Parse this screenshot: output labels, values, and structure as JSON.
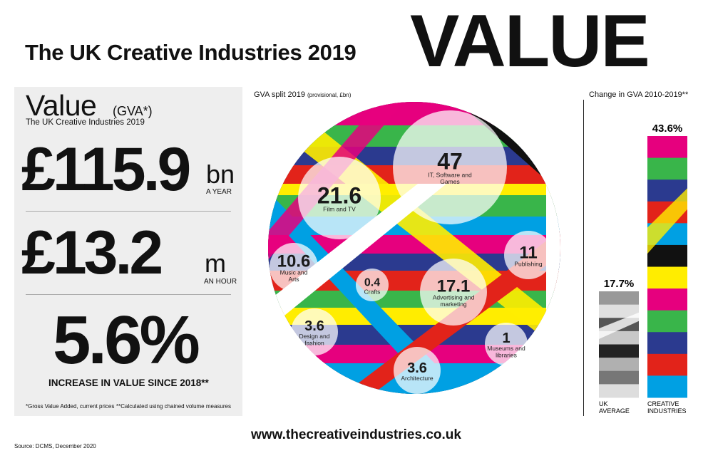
{
  "header": {
    "title": "The UK Creative Industries 2019",
    "title_big": "VALUE"
  },
  "summary": {
    "heading": "Value",
    "heading_tag": "(GVA*)",
    "subheading": "The UK Creative Industries 2019",
    "stat1": {
      "value": "£115.9",
      "unit": "bn",
      "per": "A YEAR"
    },
    "stat2": {
      "value": "£13.2",
      "unit": "m",
      "per": "AN HOUR"
    },
    "stat3": {
      "value": "5.6%",
      "caption": "INCREASE IN VALUE SINCE 2018**"
    },
    "footnote1": "*Gross Value Added, current prices",
    "footnote2": "**Calculated using chained volume measures"
  },
  "source": "Source: DCMS, December 2020",
  "url": "www.thecreativeindustries.co.uk",
  "colors": {
    "magenta": "#e6007e",
    "blue": "#2b3a8f",
    "cyan": "#00a0e3",
    "red": "#e2231a",
    "green": "#39b54a",
    "yellow": "#ffed00",
    "black": "#000000",
    "orange": "#f39200"
  },
  "chart_data": [
    {
      "type": "bubble",
      "title": "GVA split 2019",
      "title_note": "(provisional, £bn)",
      "items": [
        {
          "label": "IT, Software and Games",
          "label_lines": [
            "IT, Software and",
            "Games"
          ],
          "value": 47
        },
        {
          "label": "Film and TV",
          "label_lines": [
            "Film and TV"
          ],
          "value": 21.6
        },
        {
          "label": "Advertising and marketing",
          "label_lines": [
            "Advertising and",
            "marketing"
          ],
          "value": 17.1
        },
        {
          "label": "Publishing",
          "label_lines": [
            "Publishing"
          ],
          "value": 11
        },
        {
          "label": "Music and Arts",
          "label_lines": [
            "Music and",
            "Arts"
          ],
          "value": 10.6
        },
        {
          "label": "Design and fashion",
          "label_lines": [
            "Design and",
            "fashion"
          ],
          "value": 3.6
        },
        {
          "label": "Architecture",
          "label_lines": [
            "Architecture"
          ],
          "value": 3.6
        },
        {
          "label": "Museums and libraries",
          "label_lines": [
            "Museums and",
            "libraries"
          ],
          "value": 1
        },
        {
          "label": "Crafts",
          "label_lines": [
            "Crafts"
          ],
          "value": 0.4
        }
      ]
    },
    {
      "type": "bar",
      "title": "Change in GVA  2010-2019**",
      "categories": [
        "UK AVERAGE",
        "CREATIVE INDUSTRIES"
      ],
      "category_lines": [
        [
          "UK",
          "AVERAGE"
        ],
        [
          "CREATIVE",
          "INDUSTRIES"
        ]
      ],
      "values": [
        17.7,
        43.6
      ],
      "value_labels": [
        "17.7%",
        "43.6%"
      ],
      "unit": "%"
    }
  ]
}
